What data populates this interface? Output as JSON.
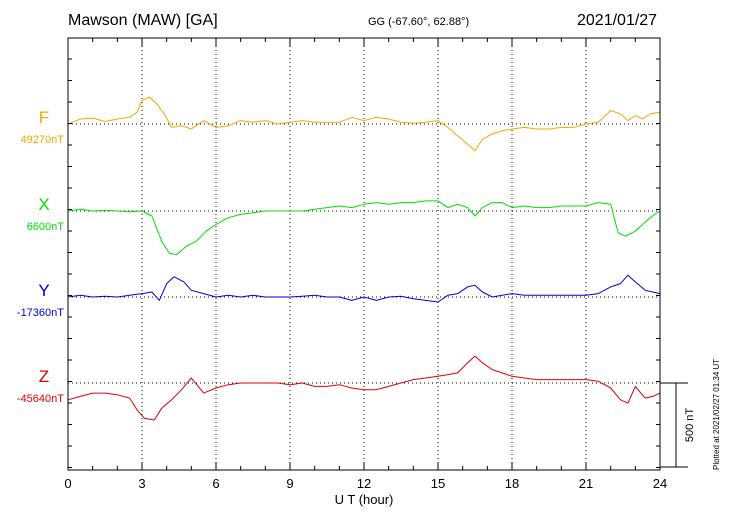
{
  "header": {
    "title": "Mawson (MAW)  [GA]",
    "coords": "GG (-67.60°,  62.88°)",
    "date": "2021/01/27"
  },
  "plotted_note": "Plotted at 2021/02/27 01:34 UT",
  "chart_data": {
    "type": "line",
    "xlabel": "U T (hour)",
    "xlim": [
      0,
      24
    ],
    "xticks": [
      0,
      3,
      6,
      9,
      12,
      15,
      18,
      21,
      24
    ],
    "xtick_labels": [
      "0",
      "3",
      "6",
      "9",
      "12",
      "15",
      "18",
      "21",
      "24"
    ],
    "grid": true,
    "scale_bar": {
      "label": "500 nT",
      "value_nT": 500
    },
    "series": [
      {
        "name": "F",
        "baseline_label": "49270nT",
        "baseline_nT": 49270,
        "color": "#f0a800",
        "points": [
          [
            0,
            0
          ],
          [
            0.5,
            -30
          ],
          [
            1,
            -35
          ],
          [
            1.5,
            -15
          ],
          [
            2,
            -30
          ],
          [
            2.5,
            -40
          ],
          [
            2.8,
            -70
          ],
          [
            3,
            -140
          ],
          [
            3.3,
            -160
          ],
          [
            3.6,
            -120
          ],
          [
            3.9,
            -60
          ],
          [
            4.2,
            20
          ],
          [
            4.6,
            10
          ],
          [
            5,
            30
          ],
          [
            5.5,
            -20
          ],
          [
            6,
            20
          ],
          [
            6.5,
            10
          ],
          [
            7,
            -20
          ],
          [
            7.5,
            -10
          ],
          [
            8,
            -20
          ],
          [
            8.5,
            0
          ],
          [
            9,
            -10
          ],
          [
            9.5,
            -20
          ],
          [
            10,
            -10
          ],
          [
            10.5,
            -10
          ],
          [
            11,
            -10
          ],
          [
            11.5,
            -40
          ],
          [
            12,
            -20
          ],
          [
            12.5,
            -40
          ],
          [
            13,
            -30
          ],
          [
            13.5,
            -10
          ],
          [
            14,
            -5
          ],
          [
            14.5,
            -10
          ],
          [
            15,
            -20
          ],
          [
            15.4,
            20
          ],
          [
            15.8,
            70
          ],
          [
            16.2,
            120
          ],
          [
            16.5,
            160
          ],
          [
            16.8,
            90
          ],
          [
            17.2,
            60
          ],
          [
            17.6,
            40
          ],
          [
            18,
            30
          ],
          [
            18.5,
            20
          ],
          [
            19,
            30
          ],
          [
            19.5,
            30
          ],
          [
            20,
            20
          ],
          [
            20.5,
            20
          ],
          [
            21,
            0
          ],
          [
            21.5,
            -10
          ],
          [
            22,
            -80
          ],
          [
            22.4,
            -60
          ],
          [
            22.7,
            -20
          ],
          [
            23,
            -50
          ],
          [
            23.3,
            -30
          ],
          [
            23.6,
            -60
          ],
          [
            24,
            -70
          ]
        ]
      },
      {
        "name": "X",
        "baseline_label": "6600nT",
        "baseline_nT": 6600,
        "color": "#00e000",
        "points": [
          [
            0,
            0
          ],
          [
            0.5,
            -10
          ],
          [
            1,
            0
          ],
          [
            1.5,
            -5
          ],
          [
            2,
            0
          ],
          [
            2.5,
            5
          ],
          [
            3,
            0
          ],
          [
            3.4,
            30
          ],
          [
            3.8,
            180
          ],
          [
            4.1,
            250
          ],
          [
            4.4,
            260
          ],
          [
            4.8,
            210
          ],
          [
            5.2,
            180
          ],
          [
            5.6,
            120
          ],
          [
            6,
            80
          ],
          [
            6.5,
            40
          ],
          [
            7,
            20
          ],
          [
            7.5,
            10
          ],
          [
            8,
            0
          ],
          [
            8.5,
            0
          ],
          [
            9,
            0
          ],
          [
            9.5,
            0
          ],
          [
            10,
            -10
          ],
          [
            10.5,
            -20
          ],
          [
            11,
            -30
          ],
          [
            11.5,
            -20
          ],
          [
            12,
            -40
          ],
          [
            12.5,
            -50
          ],
          [
            13,
            -40
          ],
          [
            13.5,
            -50
          ],
          [
            14,
            -50
          ],
          [
            14.5,
            -60
          ],
          [
            15,
            -60
          ],
          [
            15.4,
            -20
          ],
          [
            15.8,
            -40
          ],
          [
            16.2,
            -20
          ],
          [
            16.5,
            30
          ],
          [
            16.8,
            -20
          ],
          [
            17.2,
            -50
          ],
          [
            17.6,
            -50
          ],
          [
            18,
            -20
          ],
          [
            18.5,
            -30
          ],
          [
            19,
            -20
          ],
          [
            19.5,
            -20
          ],
          [
            20,
            -30
          ],
          [
            20.5,
            -30
          ],
          [
            21,
            -30
          ],
          [
            21.5,
            -50
          ],
          [
            22,
            -40
          ],
          [
            22.3,
            130
          ],
          [
            22.6,
            150
          ],
          [
            23,
            120
          ],
          [
            23.3,
            80
          ],
          [
            23.6,
            40
          ],
          [
            24,
            0
          ]
        ]
      },
      {
        "name": "Y",
        "baseline_label": "-17360nT",
        "baseline_nT": -17360,
        "color": "#0000e0",
        "points": [
          [
            0,
            0
          ],
          [
            0.5,
            -10
          ],
          [
            1,
            0
          ],
          [
            1.5,
            -5
          ],
          [
            2,
            0
          ],
          [
            2.5,
            -10
          ],
          [
            3,
            -20
          ],
          [
            3.4,
            -30
          ],
          [
            3.7,
            20
          ],
          [
            4,
            -80
          ],
          [
            4.3,
            -120
          ],
          [
            4.7,
            -90
          ],
          [
            5,
            -40
          ],
          [
            5.5,
            -20
          ],
          [
            6,
            0
          ],
          [
            6.5,
            -10
          ],
          [
            7,
            0
          ],
          [
            7.5,
            -10
          ],
          [
            8,
            0
          ],
          [
            8.5,
            0
          ],
          [
            9,
            0
          ],
          [
            9.5,
            -5
          ],
          [
            10,
            -10
          ],
          [
            10.5,
            0
          ],
          [
            11,
            0
          ],
          [
            11.5,
            20
          ],
          [
            12,
            0
          ],
          [
            12.5,
            20
          ],
          [
            13,
            0
          ],
          [
            13.5,
            -5
          ],
          [
            14,
            10
          ],
          [
            14.5,
            20
          ],
          [
            15,
            30
          ],
          [
            15.4,
            -10
          ],
          [
            15.8,
            -20
          ],
          [
            16.2,
            -60
          ],
          [
            16.5,
            -70
          ],
          [
            16.8,
            -30
          ],
          [
            17.2,
            0
          ],
          [
            17.6,
            -10
          ],
          [
            18,
            -20
          ],
          [
            18.5,
            -10
          ],
          [
            19,
            -10
          ],
          [
            19.5,
            -10
          ],
          [
            20,
            -10
          ],
          [
            20.5,
            -10
          ],
          [
            21,
            -10
          ],
          [
            21.5,
            -20
          ],
          [
            22,
            -60
          ],
          [
            22.4,
            -80
          ],
          [
            22.7,
            -130
          ],
          [
            23,
            -90
          ],
          [
            23.4,
            -40
          ],
          [
            23.7,
            -30
          ],
          [
            24,
            -20
          ]
        ]
      },
      {
        "name": "Z",
        "baseline_label": "-45640nT",
        "baseline_nT": -45640,
        "color": "#e00000",
        "points": [
          [
            0,
            100
          ],
          [
            0.5,
            80
          ],
          [
            1,
            60
          ],
          [
            1.5,
            60
          ],
          [
            2,
            70
          ],
          [
            2.5,
            90
          ],
          [
            2.8,
            160
          ],
          [
            3.1,
            210
          ],
          [
            3.5,
            220
          ],
          [
            3.8,
            150
          ],
          [
            4.2,
            100
          ],
          [
            4.6,
            40
          ],
          [
            5,
            -30
          ],
          [
            5.5,
            60
          ],
          [
            6,
            30
          ],
          [
            6.5,
            10
          ],
          [
            7,
            0
          ],
          [
            7.5,
            0
          ],
          [
            8,
            0
          ],
          [
            8.5,
            0
          ],
          [
            9,
            10
          ],
          [
            9.5,
            0
          ],
          [
            10,
            20
          ],
          [
            10.5,
            20
          ],
          [
            11,
            10
          ],
          [
            11.5,
            30
          ],
          [
            12,
            40
          ],
          [
            12.5,
            40
          ],
          [
            13,
            20
          ],
          [
            13.5,
            0
          ],
          [
            14,
            -20
          ],
          [
            14.5,
            -30
          ],
          [
            15,
            -40
          ],
          [
            15.4,
            -50
          ],
          [
            15.8,
            -60
          ],
          [
            16.2,
            -120
          ],
          [
            16.5,
            -160
          ],
          [
            16.8,
            -120
          ],
          [
            17.2,
            -80
          ],
          [
            17.6,
            -60
          ],
          [
            18,
            -40
          ],
          [
            18.5,
            -30
          ],
          [
            19,
            -20
          ],
          [
            19.5,
            -20
          ],
          [
            20,
            -20
          ],
          [
            20.5,
            -20
          ],
          [
            21,
            -20
          ],
          [
            21.5,
            -10
          ],
          [
            22,
            30
          ],
          [
            22.4,
            100
          ],
          [
            22.7,
            120
          ],
          [
            23,
            20
          ],
          [
            23.4,
            90
          ],
          [
            23.7,
            80
          ],
          [
            24,
            60
          ]
        ]
      }
    ]
  }
}
